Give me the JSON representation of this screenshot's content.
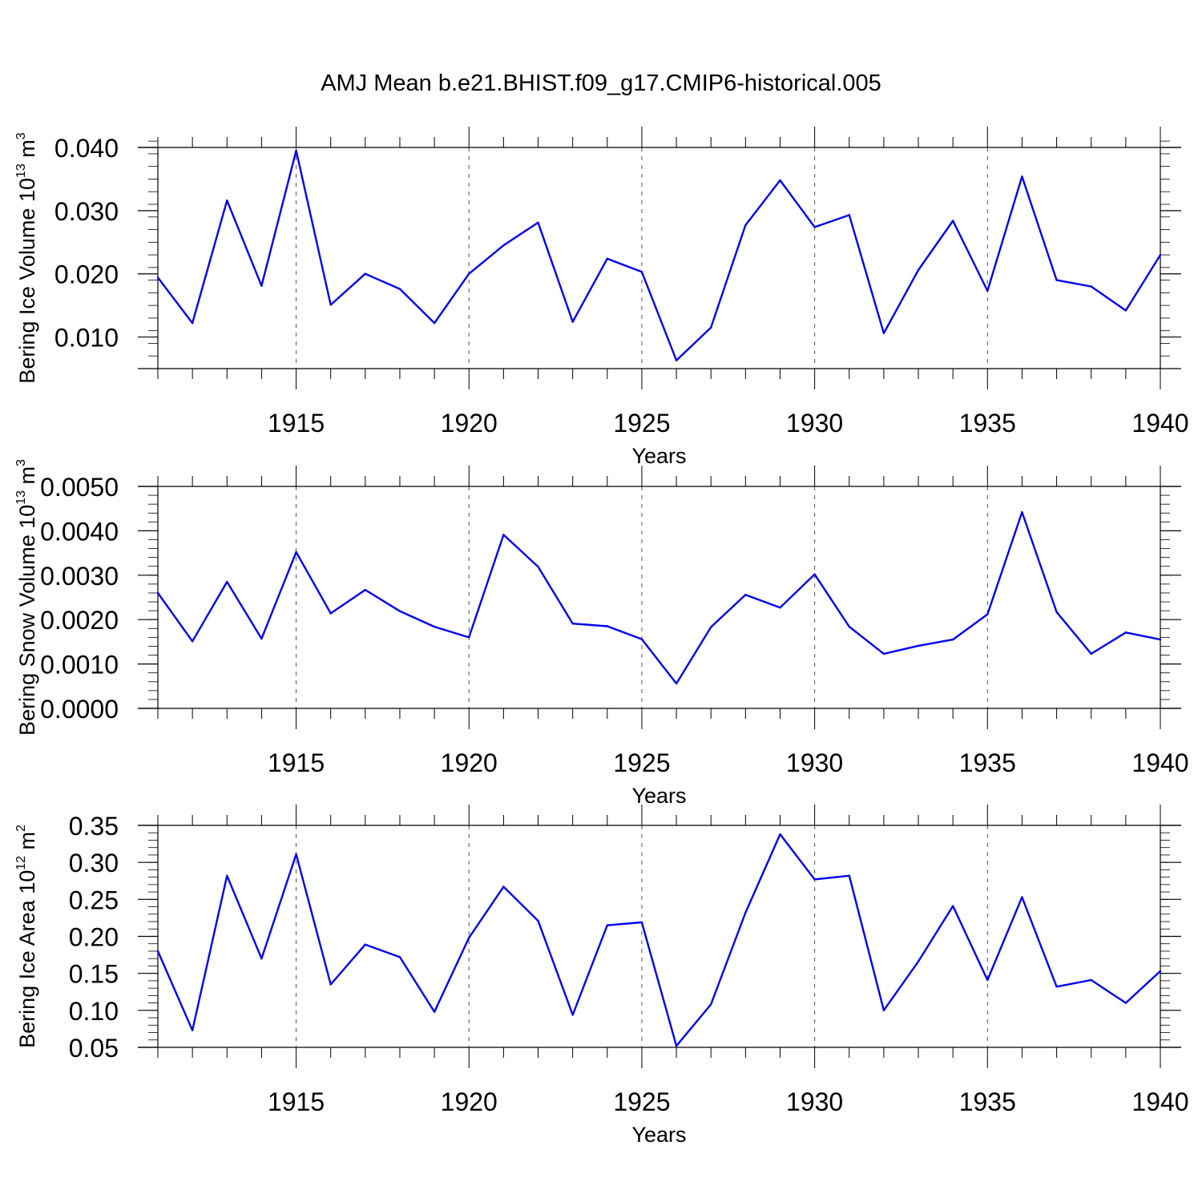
{
  "title": "AMJ Mean b.e21.BHIST.f09_g17.CMIP6-historical.005",
  "colors": {
    "series": "#0000ee",
    "axis": "#000000",
    "grid": "#555555"
  },
  "chart_data": [
    {
      "type": "line",
      "ylabel_main": "Bering Ice Volume 10",
      "ylabel_exp": "13",
      "ylabel_unit": " m",
      "ylabel_unit_exp": "3",
      "xlabel": "Years",
      "xlim": [
        1911,
        1940
      ],
      "ylim": [
        0.005,
        0.04
      ],
      "yticks": [
        0.01,
        0.02,
        0.03,
        0.04
      ],
      "ytick_labels": [
        "0.010",
        "0.020",
        "0.030",
        "0.040"
      ],
      "yminor_step": 0.002,
      "xticks": [
        1915,
        1920,
        1925,
        1930,
        1935,
        1940
      ],
      "xtick_labels": [
        "1915",
        "1920",
        "1925",
        "1930",
        "1935",
        "1940"
      ],
      "grid": "vertical-dashed",
      "x": [
        1911,
        1912,
        1913,
        1914,
        1915,
        1916,
        1917,
        1918,
        1919,
        1920,
        1921,
        1922,
        1923,
        1924,
        1925,
        1926,
        1927,
        1928,
        1929,
        1930,
        1931,
        1932,
        1933,
        1934,
        1935,
        1936,
        1937,
        1938,
        1939,
        1940
      ],
      "y": [
        0.0194,
        0.0122,
        0.0316,
        0.0181,
        0.0395,
        0.0151,
        0.02,
        0.0176,
        0.0122,
        0.02,
        0.0245,
        0.0281,
        0.0124,
        0.0224,
        0.0203,
        0.0063,
        0.0115,
        0.0277,
        0.0348,
        0.0274,
        0.0293,
        0.0106,
        0.0206,
        0.0284,
        0.0173,
        0.0354,
        0.019,
        0.018,
        0.0142,
        0.023
      ]
    },
    {
      "type": "line",
      "ylabel_main": "Bering Snow Volume 10",
      "ylabel_exp": "13",
      "ylabel_unit": " m",
      "ylabel_unit_exp": "3",
      "xlabel": "Years",
      "xlim": [
        1911,
        1940
      ],
      "ylim": [
        0.0,
        0.005
      ],
      "yticks": [
        0.0,
        0.001,
        0.002,
        0.003,
        0.004,
        0.005
      ],
      "ytick_labels": [
        "0.0000",
        "0.0010",
        "0.0020",
        "0.0030",
        "0.0040",
        "0.0050"
      ],
      "yminor_step": 0.0002,
      "xticks": [
        1915,
        1920,
        1925,
        1930,
        1935,
        1940
      ],
      "xtick_labels": [
        "1915",
        "1920",
        "1925",
        "1930",
        "1935",
        "1940"
      ],
      "grid": "vertical-dashed",
      "x": [
        1911,
        1912,
        1913,
        1914,
        1915,
        1916,
        1917,
        1918,
        1919,
        1920,
        1921,
        1922,
        1923,
        1924,
        1925,
        1926,
        1927,
        1928,
        1929,
        1930,
        1931,
        1932,
        1933,
        1934,
        1935,
        1936,
        1937,
        1938,
        1939,
        1940
      ],
      "y": [
        0.0026,
        0.00151,
        0.00285,
        0.00157,
        0.00352,
        0.00214,
        0.00267,
        0.00219,
        0.00184,
        0.0016,
        0.00391,
        0.00319,
        0.00191,
        0.00185,
        0.00156,
        0.00056,
        0.00183,
        0.00256,
        0.00227,
        0.00302,
        0.00184,
        0.00123,
        0.00141,
        0.00155,
        0.00212,
        0.00442,
        0.00217,
        0.00123,
        0.00171,
        0.00155
      ]
    },
    {
      "type": "line",
      "ylabel_main": "Bering Ice Area 10",
      "ylabel_exp": "12",
      "ylabel_unit": " m",
      "ylabel_unit_exp": "2",
      "xlabel": "Years",
      "xlim": [
        1911,
        1940
      ],
      "ylim": [
        0.05,
        0.35
      ],
      "yticks": [
        0.05,
        0.1,
        0.15,
        0.2,
        0.25,
        0.3,
        0.35
      ],
      "ytick_labels": [
        "0.05",
        "0.10",
        "0.15",
        "0.20",
        "0.25",
        "0.30",
        "0.35"
      ],
      "yminor_step": 0.01,
      "xticks": [
        1915,
        1920,
        1925,
        1930,
        1935,
        1940
      ],
      "xtick_labels": [
        "1915",
        "1920",
        "1925",
        "1930",
        "1935",
        "1940"
      ],
      "grid": "vertical-dashed",
      "x": [
        1911,
        1912,
        1913,
        1914,
        1915,
        1916,
        1917,
        1918,
        1919,
        1920,
        1921,
        1922,
        1923,
        1924,
        1925,
        1926,
        1927,
        1928,
        1929,
        1930,
        1931,
        1932,
        1933,
        1934,
        1935,
        1936,
        1937,
        1938,
        1939,
        1940
      ],
      "y": [
        0.18,
        0.073,
        0.282,
        0.17,
        0.311,
        0.135,
        0.189,
        0.172,
        0.098,
        0.198,
        0.267,
        0.221,
        0.094,
        0.215,
        0.219,
        0.052,
        0.108,
        0.232,
        0.338,
        0.277,
        0.282,
        0.1,
        0.166,
        0.241,
        0.141,
        0.253,
        0.132,
        0.141,
        0.11,
        0.153
      ]
    }
  ]
}
